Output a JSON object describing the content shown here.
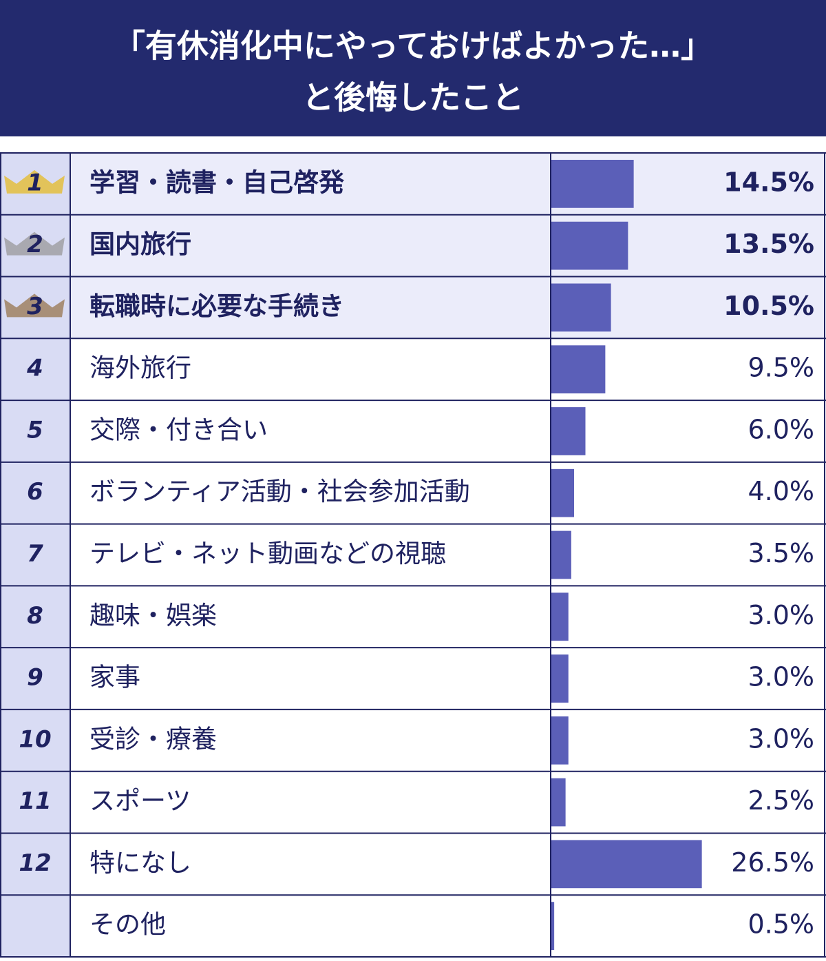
{
  "chart_data": {
    "type": "bar",
    "title": [
      "「有休消化中にやっておけばよかった…」",
      "と後悔したこと"
    ],
    "ranks": [
      "1",
      "2",
      "3",
      "4",
      "5",
      "6",
      "7",
      "8",
      "9",
      "10",
      "11",
      "12",
      null
    ],
    "categories": [
      "学習・読書・自己啓発",
      "国内旅行",
      "転職時に必要な手続き",
      "海外旅行",
      "交際・付き合い",
      "ボランティア活動・社会参加活動",
      "テレビ・ネット動画などの視聴",
      "趣味・娯楽",
      "家事",
      "受診・療養",
      "スポーツ",
      "特になし",
      "その他"
    ],
    "values": [
      14.5,
      13.5,
      10.5,
      9.5,
      6.0,
      4.0,
      3.5,
      3.0,
      3.0,
      3.0,
      2.5,
      26.5,
      0.5
    ],
    "value_labels": [
      "14.5%",
      "13.5%",
      "10.5%",
      "9.5%",
      "6.0%",
      "4.0%",
      "3.5%",
      "3.0%",
      "3.0%",
      "3.0%",
      "2.5%",
      "26.5%",
      "0.5%"
    ],
    "color": "#5b5fb8"
  }
}
